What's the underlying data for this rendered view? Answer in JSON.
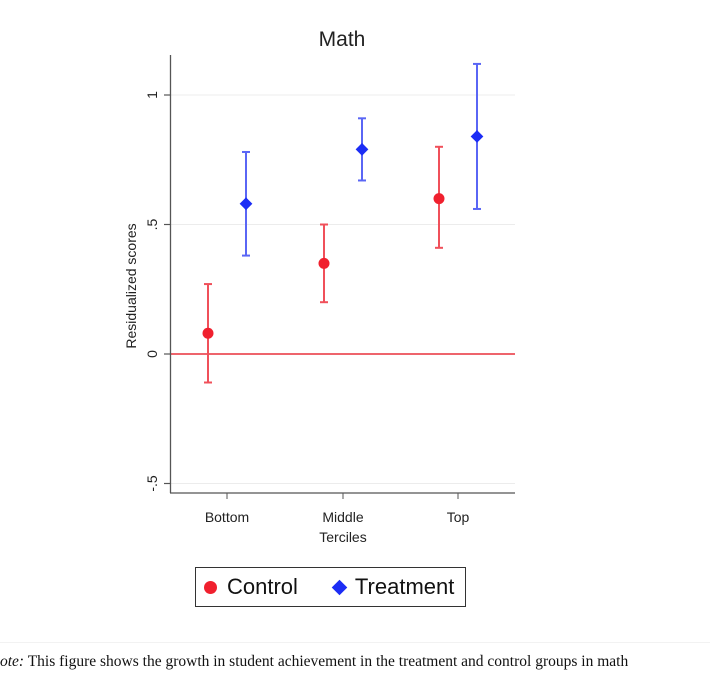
{
  "chart_data": {
    "type": "scatter",
    "subtype": "point-with-error-bars",
    "title": "Math",
    "xlabel": "Terciles",
    "ylabel": "Residualized scores",
    "categories": [
      "Bottom",
      "Middle",
      "Top"
    ],
    "yticks": [
      -0.5,
      0,
      0.5,
      1
    ],
    "ytick_labels": [
      "-.5",
      "0",
      ".5",
      "1"
    ],
    "ylim": [
      -0.53,
      1.15
    ],
    "grid": true,
    "reference_line": 0,
    "legend_position": "bottom",
    "series": [
      {
        "name": "Control",
        "marker": "circle",
        "color": "#f0202e",
        "values": [
          0.08,
          0.35,
          0.6
        ],
        "ci_low": [
          -0.11,
          0.2,
          0.41
        ],
        "ci_high": [
          0.27,
          0.5,
          0.8
        ]
      },
      {
        "name": "Treatment",
        "marker": "diamond",
        "color": "#1c2df5",
        "values": [
          0.58,
          0.79,
          0.84
        ],
        "ci_low": [
          0.38,
          0.67,
          0.56
        ],
        "ci_high": [
          0.78,
          0.91,
          1.12
        ]
      }
    ]
  },
  "legend": {
    "control": "Control",
    "treatment": "Treatment"
  },
  "note": {
    "label": "ote:",
    "text": " This figure shows the growth in student achievement in the treatment and control groups in math"
  }
}
